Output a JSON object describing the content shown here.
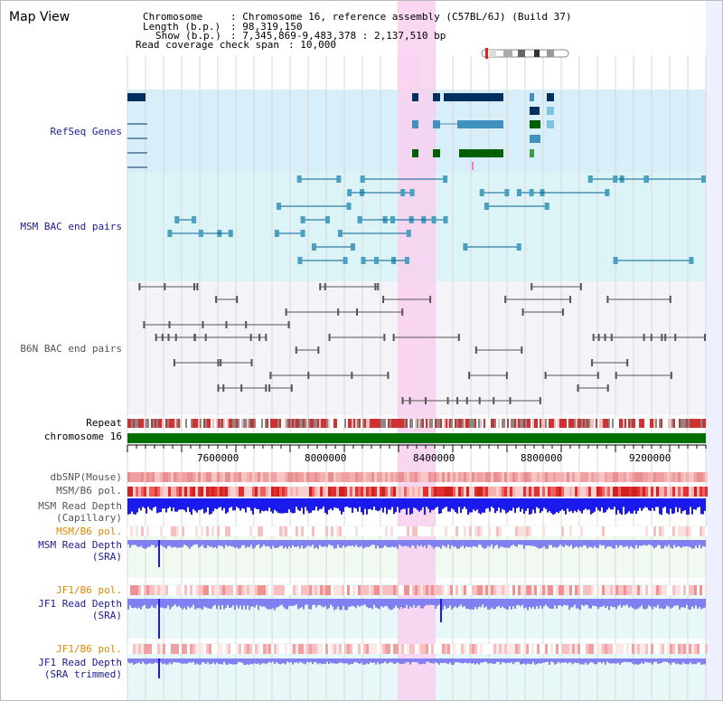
{
  "app_title": "Map View",
  "info": {
    "chromosome_key": "Chromosome",
    "chromosome_val": ": Chromosome 16, reference assembly (C57BL/6J) (Build 37)",
    "length_key": "Length (b.p.)",
    "length_val": ": 98,319,150",
    "show_key": "Show (b.p.)",
    "show_val": ": 7,345,869-9,483,378 : 2,137,510 bp",
    "coverage_key": "Read coverage check span",
    "coverage_val": ": 10,000"
  },
  "tracks": {
    "refseq": "RefSeq Genes",
    "msm_bac": "MSM BAC end pairs",
    "b6n_bac": "B6N BAC end pairs",
    "repeat": "Repeat",
    "chromosome": "chromosome 16",
    "dbsnp": "dbSNP(Mouse)",
    "msm_b6_pol_1": "MSM/B6 pol.",
    "msm_read_depth_cap_1": "MSM Read Depth",
    "msm_read_depth_cap_2": "(Capillary)",
    "msm_b6_pol_2": "MSM/B6 pol.",
    "msm_read_depth_sra_1": "MSM Read Depth",
    "msm_read_depth_sra_2": "(SRA)",
    "jf1_b6_pol_1": "JF1/B6 pol.",
    "jf1_read_depth_sra_1": "JF1 Read Depth",
    "jf1_read_depth_sra_2": "(SRA)",
    "jf1_b6_pol_2": "JF1/B6 pol.",
    "jf1_read_depth_trim_1": "JF1 Read Depth",
    "jf1_read_depth_trim_2": "(SRA trimmed)"
  },
  "axis": {
    "ticks": [
      "7600000",
      "8000000",
      "8400000",
      "8800000",
      "9200000"
    ]
  },
  "colors": {
    "highlight": "#f8d0f0",
    "refseq_bg": "#d8eef8",
    "msm_bg": "#dcf4f8",
    "b6n_bg": "#f4f4f8",
    "chromosome_bar": "#007000",
    "navy_label": "#1a1a9a",
    "orange_label": "#e08a00",
    "capillary_depth": "#1a1aee",
    "sra_depth": "#8080f0"
  },
  "icons": {
    "ideogram": "chromosome-ideogram-icon"
  }
}
